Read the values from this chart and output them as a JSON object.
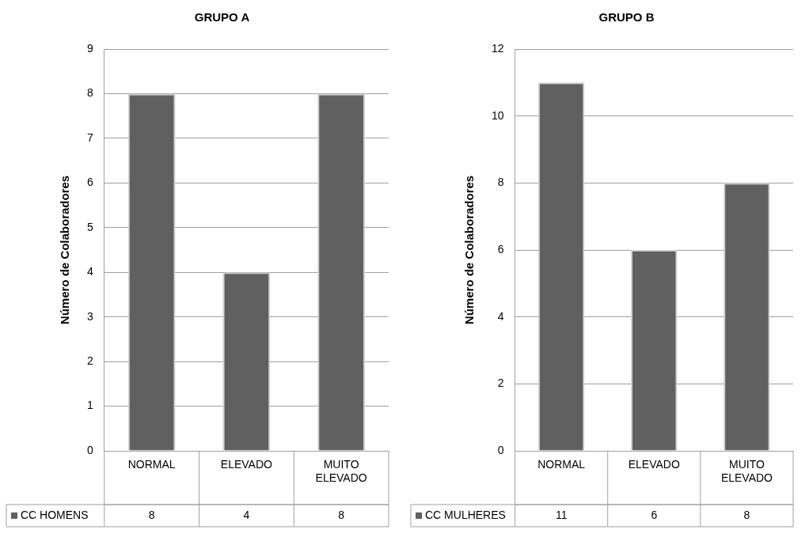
{
  "chart_data": [
    {
      "type": "bar",
      "title": "GRUPO A",
      "ylabel": "Número de Colaboradores",
      "categories": [
        "NORMAL",
        "ELEVADO",
        "MUITO ELEVADO"
      ],
      "series": [
        {
          "name": "CC HOMENS",
          "color": "#606060",
          "values": [
            8,
            4,
            8
          ]
        }
      ],
      "ylim": [
        0,
        9
      ],
      "yticks": [
        0,
        1,
        2,
        3,
        4,
        5,
        6,
        7,
        8,
        9
      ],
      "grid": "y",
      "data_labels": true
    },
    {
      "type": "bar",
      "title": "GRUPO B",
      "ylabel": "Número de Colaboradores",
      "categories": [
        "NORMAL",
        "ELEVADO",
        "MUITO ELEVADO"
      ],
      "series": [
        {
          "name": "CC MULHERES",
          "color": "#606060",
          "values": [
            11,
            6,
            8
          ]
        }
      ],
      "ylim": [
        0,
        12
      ],
      "yticks": [
        0,
        2,
        4,
        6,
        8,
        10,
        12
      ],
      "grid": "y",
      "data_labels": true
    }
  ]
}
